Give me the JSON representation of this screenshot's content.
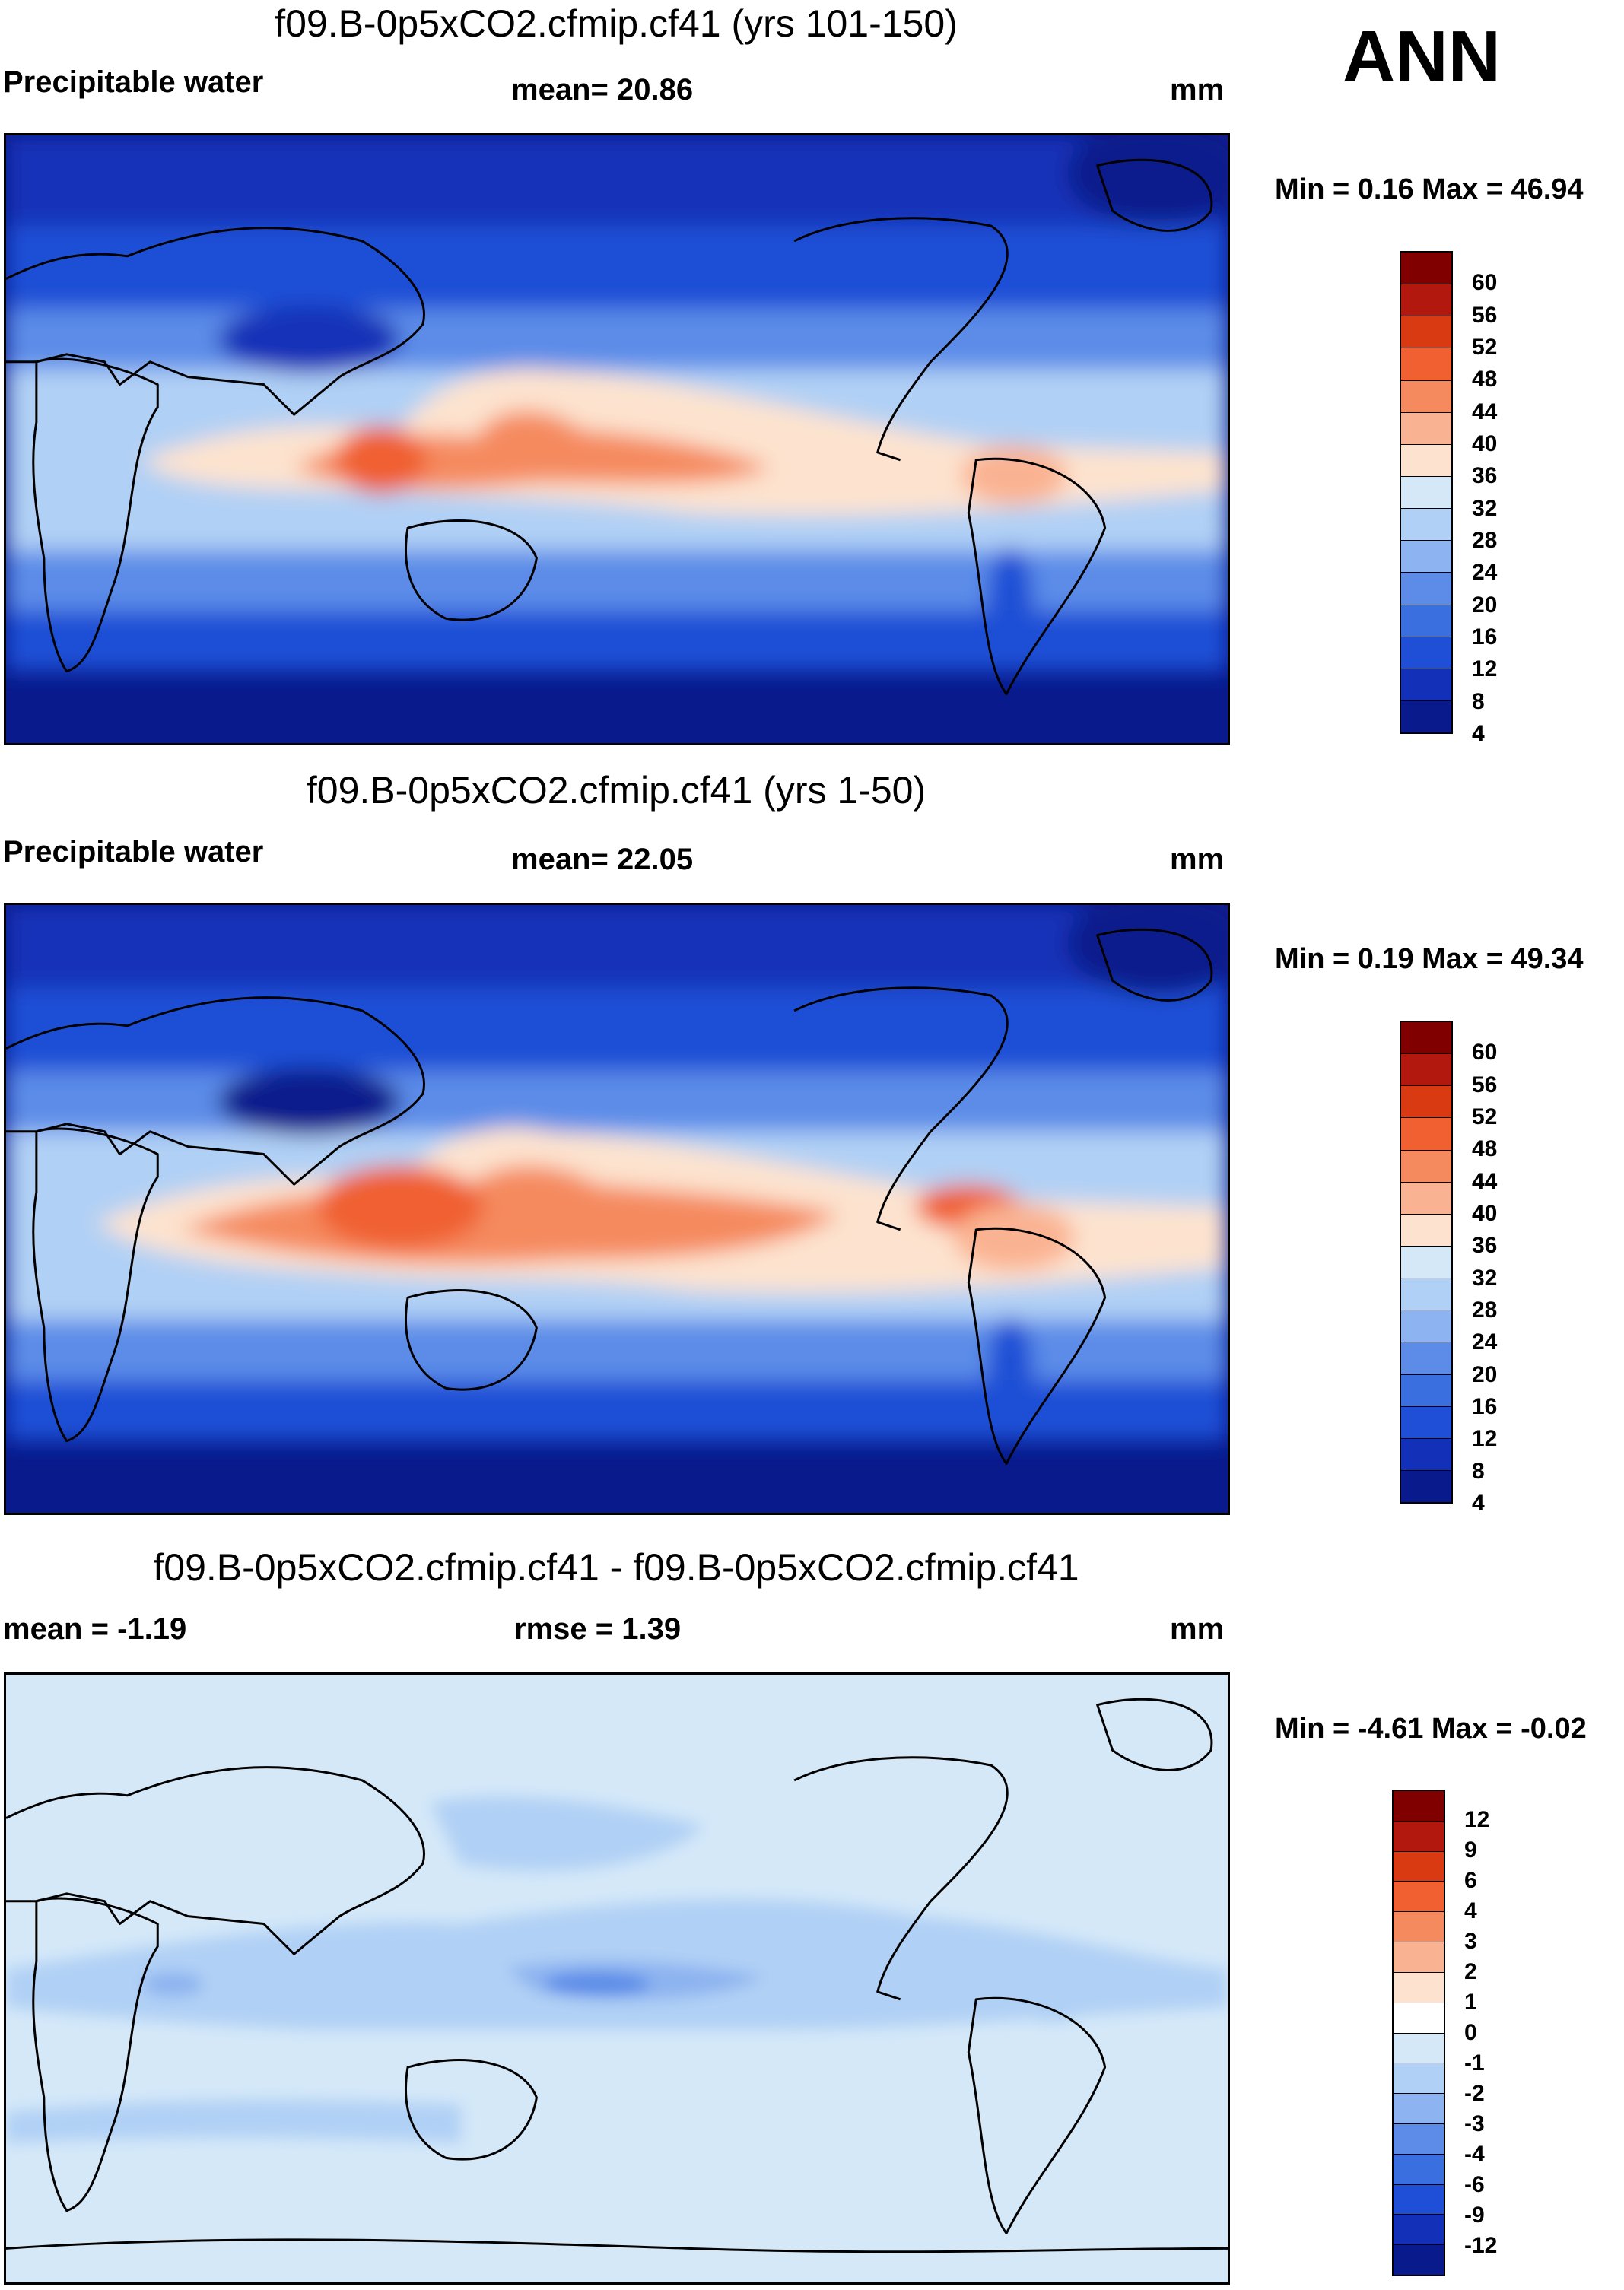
{
  "season": "ANN",
  "panels": [
    {
      "title": "f09.B-0p5xCO2.cfmip.cf41 (yrs 101-150)",
      "left_label": "Precipitable water",
      "center_label": "mean=  20.86",
      "units": "mm",
      "minmax": "Min =   0.16 Max =  46.94",
      "colorbar_labels": [
        "60",
        "56",
        "52",
        "48",
        "44",
        "40",
        "36",
        "32",
        "28",
        "24",
        "20",
        "16",
        "12",
        "8",
        "4"
      ],
      "colorbar_colors": [
        "#800000",
        "#b2180e",
        "#d93a12",
        "#f06030",
        "#f58a5e",
        "#fab392",
        "#fde3cf",
        "#d4e8f8",
        "#b0d0f5",
        "#8db3f0",
        "#5c8ce8",
        "#3a6fe0",
        "#1f4fd6",
        "#1330b8",
        "#081a8c"
      ]
    },
    {
      "title": "f09.B-0p5xCO2.cfmip.cf41 (yrs 1-50)",
      "left_label": "Precipitable water",
      "center_label": "mean=  22.05",
      "units": "mm",
      "minmax": "Min =   0.19 Max =  49.34",
      "colorbar_labels": [
        "60",
        "56",
        "52",
        "48",
        "44",
        "40",
        "36",
        "32",
        "28",
        "24",
        "20",
        "16",
        "12",
        "8",
        "4"
      ],
      "colorbar_colors": [
        "#800000",
        "#b2180e",
        "#d93a12",
        "#f06030",
        "#f58a5e",
        "#fab392",
        "#fde3cf",
        "#d4e8f8",
        "#b0d0f5",
        "#8db3f0",
        "#5c8ce8",
        "#3a6fe0",
        "#1f4fd6",
        "#1330b8",
        "#081a8c"
      ]
    },
    {
      "title": "f09.B-0p5xCO2.cfmip.cf41 - f09.B-0p5xCO2.cfmip.cf41",
      "left_label": "mean =  -1.19",
      "center_label": "rmse =   1.39",
      "units": "mm",
      "minmax": "Min =  -4.61 Max =  -0.02",
      "colorbar_labels": [
        "12",
        "9",
        "6",
        "4",
        "3",
        "2",
        "1",
        "0",
        "-1",
        "-2",
        "-3",
        "-4",
        "-6",
        "-9",
        "-12"
      ],
      "colorbar_colors": [
        "#800000",
        "#b2180e",
        "#d93a12",
        "#f06030",
        "#f58a5e",
        "#fab392",
        "#fde3cf",
        "#ffffff",
        "#d4e8f8",
        "#b0d0f5",
        "#8db3f0",
        "#5c8ce8",
        "#3a6fe0",
        "#1f4fd6",
        "#1330b8",
        "#081a8c"
      ]
    }
  ]
}
